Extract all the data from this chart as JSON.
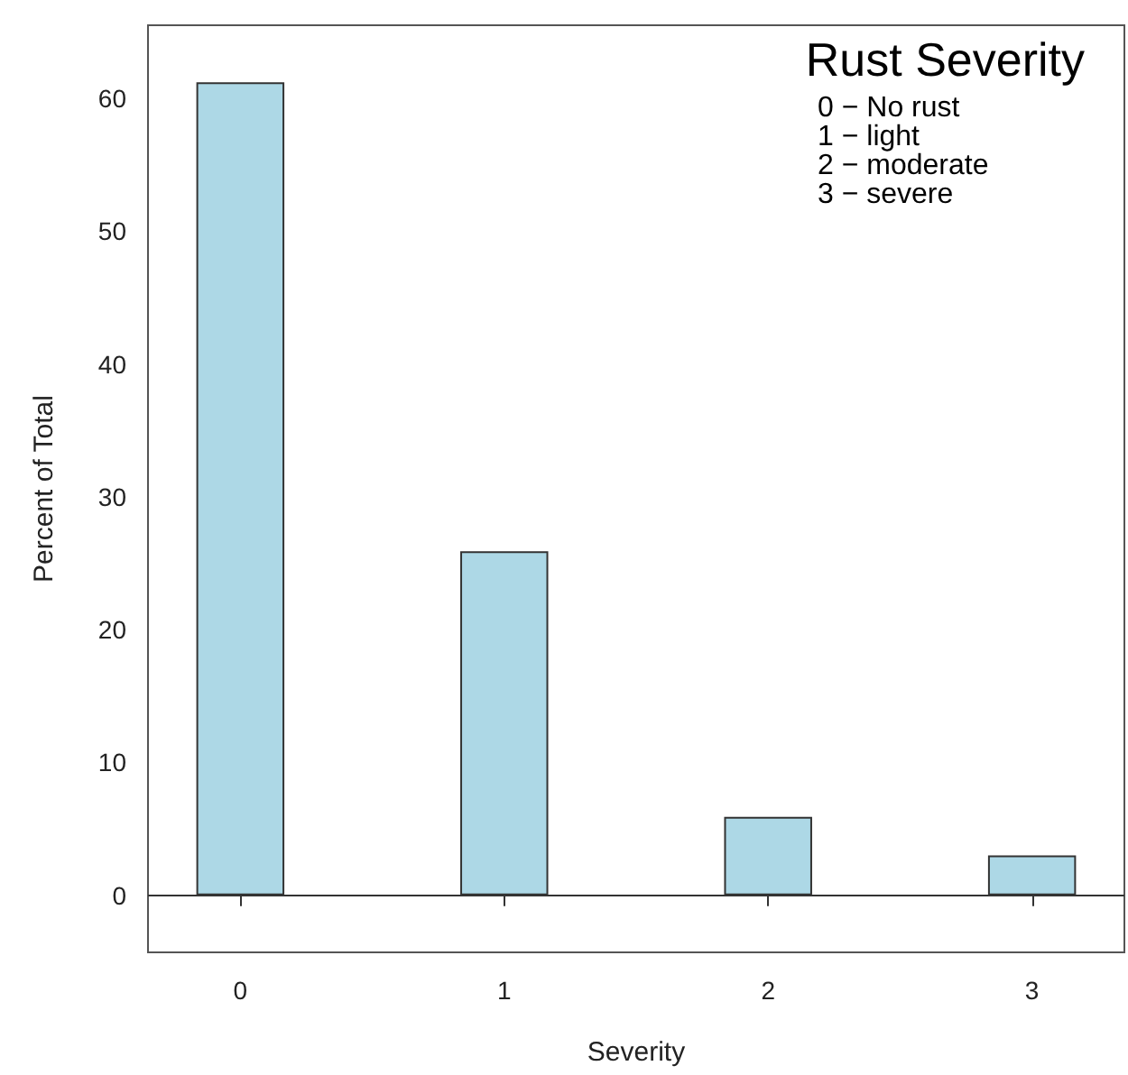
{
  "chart_data": {
    "type": "bar",
    "xlabel": "Severity",
    "ylabel": "Percent of Total",
    "legend_title": "Rust Severity",
    "annotations": [
      "0 − No rust",
      "1 − light",
      "2 − moderate",
      "3 − severe"
    ],
    "x": [
      0,
      1,
      2,
      3
    ],
    "values": [
      61.2,
      25.9,
      5.9,
      3.0
    ],
    "color": "#add8e6",
    "xlim": [
      -0.35,
      3.35
    ],
    "xticks": [
      0,
      1,
      2,
      3
    ],
    "ylim": [
      -4.3,
      65.5
    ],
    "yticks": [
      0,
      10,
      20,
      30,
      40,
      50,
      60
    ],
    "ref_lines": [
      {
        "axis": "y",
        "value": 0
      }
    ],
    "grid": false
  }
}
